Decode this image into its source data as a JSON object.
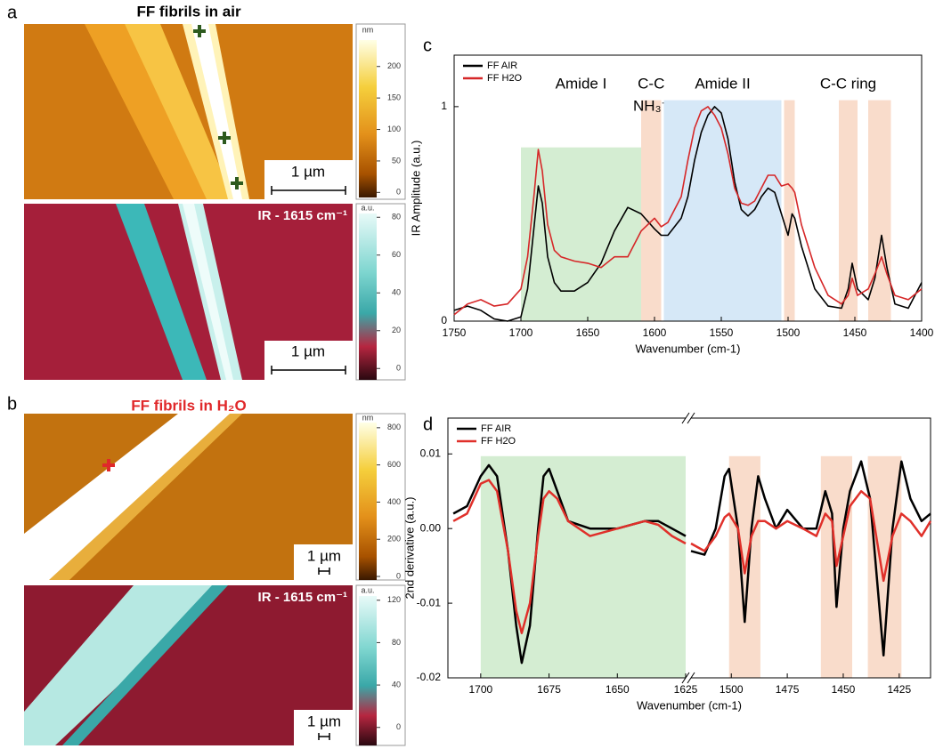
{
  "panels": {
    "a": {
      "label": "a",
      "title": "FF fibrils in air",
      "topography": {
        "unit": "nm",
        "lim": [
          -8,
          242
        ],
        "ticks": [
          0,
          50,
          100,
          150,
          200
        ],
        "scale_bar": "1 µm"
      },
      "ir_map": {
        "title": "IR - 1615 cm⁻¹",
        "unit": "a.u.",
        "lim": [
          -6,
          82
        ],
        "ticks": [
          0,
          20,
          40,
          60,
          80
        ],
        "scale_bar": "1 µm"
      }
    },
    "b": {
      "label": "b",
      "title": "FF fibrils in H₂O",
      "topography": {
        "unit": "nm",
        "lim": [
          -19,
          828
        ],
        "ticks": [
          0,
          200,
          400,
          600,
          800
        ],
        "scale_bar": "1 µm"
      },
      "ir_map": {
        "title": "IR - 1615 cm⁻¹",
        "unit": "a.u.",
        "lim": [
          -17,
          124
        ],
        "ticks": [
          0,
          40,
          80,
          120
        ],
        "scale_bar": "1 µm"
      }
    }
  },
  "chart_data": [
    {
      "type": "line",
      "panel_label": "c",
      "x_label": "Wavenumber (cm-1)",
      "y_label": "IR Amplitude (a.u.)",
      "legend": "upper left",
      "x": [
        1750,
        1740,
        1730,
        1720,
        1710,
        1700,
        1695,
        1690,
        1687,
        1684,
        1680,
        1675,
        1670,
        1660,
        1650,
        1640,
        1630,
        1620,
        1610,
        1600,
        1595,
        1590,
        1580,
        1575,
        1570,
        1565,
        1560,
        1555,
        1550,
        1545,
        1540,
        1535,
        1530,
        1525,
        1520,
        1515,
        1510,
        1505,
        1500,
        1497,
        1495,
        1490,
        1480,
        1470,
        1460,
        1455,
        1452,
        1448,
        1440,
        1435,
        1430,
        1426,
        1420,
        1410,
        1400
      ],
      "series": [
        {
          "name": "FF AIR",
          "color": "#000000",
          "values": [
            0.05,
            0.07,
            0.05,
            0.01,
            0.0,
            0.02,
            0.15,
            0.45,
            0.63,
            0.55,
            0.3,
            0.18,
            0.14,
            0.14,
            0.18,
            0.27,
            0.42,
            0.53,
            0.5,
            0.43,
            0.4,
            0.4,
            0.48,
            0.58,
            0.75,
            0.88,
            0.96,
            1.0,
            0.97,
            0.85,
            0.65,
            0.52,
            0.49,
            0.52,
            0.58,
            0.62,
            0.6,
            0.5,
            0.4,
            0.5,
            0.48,
            0.35,
            0.15,
            0.07,
            0.06,
            0.15,
            0.27,
            0.15,
            0.1,
            0.2,
            0.4,
            0.25,
            0.08,
            0.06,
            0.18
          ]
        },
        {
          "name": "FF H2O",
          "color": "#d62728",
          "values": [
            0.03,
            0.08,
            0.1,
            0.07,
            0.08,
            0.15,
            0.3,
            0.6,
            0.8,
            0.7,
            0.45,
            0.33,
            0.3,
            0.28,
            0.27,
            0.25,
            0.3,
            0.3,
            0.42,
            0.48,
            0.44,
            0.46,
            0.58,
            0.75,
            0.9,
            0.98,
            1.0,
            0.96,
            0.9,
            0.78,
            0.62,
            0.55,
            0.54,
            0.56,
            0.62,
            0.68,
            0.68,
            0.63,
            0.64,
            0.62,
            0.6,
            0.45,
            0.25,
            0.12,
            0.08,
            0.12,
            0.2,
            0.12,
            0.15,
            0.22,
            0.3,
            0.22,
            0.12,
            0.1,
            0.15
          ]
        }
      ],
      "xlim": [
        1750,
        1400
      ],
      "xticks": [
        1750,
        1700,
        1650,
        1600,
        1550,
        1500,
        1450,
        1400
      ],
      "ylim": [
        0,
        1.24
      ],
      "yticks": [
        0,
        1
      ],
      "regions": [
        {
          "from": 1700,
          "to": 1610,
          "top": 0.81,
          "color": "#d4edd2",
          "labels": [
            "Amide I"
          ]
        },
        {
          "from": 1610,
          "to": 1595,
          "top": 1.03,
          "color": "#f9dccb",
          "labels": [
            "C-C",
            "NH₃⁺"
          ]
        },
        {
          "from": 1593,
          "to": 1505,
          "top": 1.03,
          "color": "#d6e8f7",
          "labels": [
            "Amide II"
          ]
        },
        {
          "from": 1503,
          "to": 1495,
          "top": 1.03,
          "color": "#f9dccb"
        },
        {
          "from": 1462,
          "to": 1448,
          "top": 1.03,
          "color": "#f9dccb",
          "labels": [
            "C-C ring"
          ]
        },
        {
          "from": 1440,
          "to": 1423,
          "top": 1.03,
          "color": "#f9dccb"
        }
      ]
    },
    {
      "type": "line",
      "panel_label": "d",
      "x_label": "Wavenumber (cm-1)",
      "y_label": "2nd derivative (a.u.)",
      "legend": "upper left",
      "x": [
        1710,
        1705,
        1700,
        1697,
        1694,
        1690,
        1687,
        1685,
        1682,
        1679,
        1677,
        1675,
        1672,
        1668,
        1660,
        1650,
        1640,
        1635,
        1630,
        1625,
        1570,
        1518,
        1512,
        1507,
        1503,
        1501,
        1497,
        1494,
        1491,
        1488,
        1485,
        1480,
        1475,
        1468,
        1462,
        1458,
        1455,
        1453,
        1450,
        1447,
        1442,
        1438,
        1432,
        1428,
        1424,
        1420,
        1415,
        1411
      ],
      "series": [
        {
          "name": "FF AIR",
          "color": "#000000",
          "values": [
            0.002,
            0.003,
            0.007,
            0.0085,
            0.007,
            -0.003,
            -0.013,
            -0.018,
            -0.013,
            0.0,
            0.007,
            0.008,
            0.005,
            0.001,
            0.0,
            0.0,
            0.001,
            0.001,
            0.0,
            -0.001,
            null,
            -0.003,
            -0.0035,
            0.0,
            0.007,
            0.008,
            0.0,
            -0.0125,
            0.0,
            0.007,
            0.004,
            0.0,
            0.0025,
            0.0,
            0.0,
            0.005,
            0.002,
            -0.0105,
            0.0,
            0.005,
            0.009,
            0.004,
            -0.017,
            0.0,
            0.009,
            0.004,
            0.001,
            0.002
          ]
        },
        {
          "name": "FF H2O",
          "color": "#e0302a",
          "values": [
            0.001,
            0.002,
            0.006,
            0.0065,
            0.005,
            -0.003,
            -0.011,
            -0.014,
            -0.01,
            -0.001,
            0.004,
            0.005,
            0.004,
            0.001,
            -0.001,
            0.0,
            0.001,
            0.0005,
            -0.001,
            -0.002,
            null,
            -0.002,
            -0.003,
            -0.001,
            0.0015,
            0.002,
            0.0,
            -0.006,
            -0.001,
            0.001,
            0.001,
            0.0,
            0.001,
            0.0,
            -0.001,
            0.002,
            0.001,
            -0.005,
            -0.001,
            0.003,
            0.005,
            0.004,
            -0.007,
            -0.001,
            0.002,
            0.001,
            -0.001,
            0.001
          ]
        }
      ],
      "x_segments": [
        {
          "xlim": [
            1712,
            1625
          ],
          "xticks": [
            1700,
            1675,
            1650,
            1625
          ]
        },
        {
          "xlim": [
            1518,
            1411
          ],
          "xticks": [
            1500,
            1475,
            1450,
            1425
          ]
        }
      ],
      "ylim": [
        -0.02,
        0.0148
      ],
      "yticks": [
        -0.02,
        -0.01,
        {
          "value": 0,
          "label": "0.00"
        },
        0.01
      ],
      "regions": [
        {
          "from": 1700,
          "to": 1625,
          "top": 0.0097,
          "color": "#d4edd2"
        },
        {
          "from": 1501,
          "to": 1487,
          "top": 0.0097,
          "color": "#f9dccb"
        },
        {
          "from": 1460,
          "to": 1446,
          "top": 0.0097,
          "color": "#f9dccb"
        },
        {
          "from": 1439,
          "to": 1424,
          "top": 0.0097,
          "color": "#f9dccb"
        }
      ]
    }
  ]
}
